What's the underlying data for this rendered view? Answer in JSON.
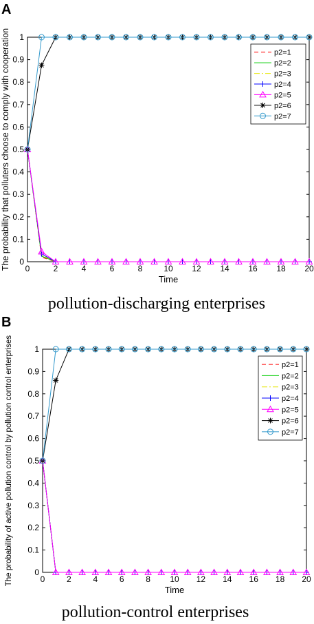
{
  "panels": [
    {
      "panel_label": "A",
      "caption": "pollution-discharging enterprises"
    },
    {
      "panel_label": "B",
      "caption": "pollution-control enterprises"
    }
  ],
  "chart_data": [
    {
      "type": "line",
      "xlabel": "Time",
      "ylabel": "The probability that polluters choose to comply with cooperation",
      "xlim": [
        0,
        20
      ],
      "ylim": [
        0,
        1
      ],
      "xticks": [
        0,
        2,
        4,
        6,
        8,
        10,
        12,
        14,
        16,
        18,
        20
      ],
      "yticks": [
        0,
        0.1,
        0.2,
        0.3,
        0.4,
        0.5,
        0.6,
        0.7,
        0.8,
        0.9,
        1
      ],
      "legend_position": "top-right",
      "x": [
        0,
        1,
        2,
        3,
        4,
        5,
        6,
        7,
        8,
        9,
        10,
        11,
        12,
        13,
        14,
        15,
        16,
        17,
        18,
        19,
        20
      ],
      "series": [
        {
          "name": "p2=1",
          "color": "#ff0000",
          "dash": "dashed",
          "marker": "none",
          "values": [
            0.5,
            0.02,
            0.0,
            0,
            0,
            0,
            0,
            0,
            0,
            0,
            0,
            0,
            0,
            0,
            0,
            0,
            0,
            0,
            0,
            0,
            0
          ]
        },
        {
          "name": "p2=2",
          "color": "#00cc00",
          "dash": "solid",
          "marker": "none",
          "values": [
            0.5,
            0.025,
            0.0,
            0,
            0,
            0,
            0,
            0,
            0,
            0,
            0,
            0,
            0,
            0,
            0,
            0,
            0,
            0,
            0,
            0,
            0
          ]
        },
        {
          "name": "p2=3",
          "color": "#e6e600",
          "dash": "dashdot",
          "marker": "none",
          "values": [
            0.5,
            0.03,
            0.0,
            0,
            0,
            0,
            0,
            0,
            0,
            0,
            0,
            0,
            0,
            0,
            0,
            0,
            0,
            0,
            0,
            0,
            0
          ]
        },
        {
          "name": "p2=4",
          "color": "#0000ff",
          "dash": "solid",
          "marker": "plus",
          "values": [
            0.5,
            0.035,
            0.0,
            0,
            0,
            0,
            0,
            0,
            0,
            0,
            0,
            0,
            0,
            0,
            0,
            0,
            0,
            0,
            0,
            0,
            0
          ]
        },
        {
          "name": "p2=5",
          "color": "#ff00ff",
          "dash": "solid",
          "marker": "triangle",
          "values": [
            0.5,
            0.045,
            0.0,
            0,
            0,
            0,
            0,
            0,
            0,
            0,
            0,
            0,
            0,
            0,
            0,
            0,
            0,
            0,
            0,
            0,
            0
          ]
        },
        {
          "name": "p2=6",
          "color": "#000000",
          "dash": "solid",
          "marker": "star",
          "values": [
            0.5,
            0.875,
            1.0,
            1,
            1,
            1,
            1,
            1,
            1,
            1,
            1,
            1,
            1,
            1,
            1,
            1,
            1,
            1,
            1,
            1,
            1
          ]
        },
        {
          "name": "p2=7",
          "color": "#3399cc",
          "dash": "solid",
          "marker": "circle",
          "values": [
            0.5,
            1.0,
            1.0,
            1,
            1,
            1,
            1,
            1,
            1,
            1,
            1,
            1,
            1,
            1,
            1,
            1,
            1,
            1,
            1,
            1,
            1
          ]
        }
      ]
    },
    {
      "type": "line",
      "xlabel": "Time",
      "ylabel": "The probability of active pollution control by pollution control enterprises",
      "xlim": [
        0,
        20
      ],
      "ylim": [
        0,
        1
      ],
      "xticks": [
        0,
        2,
        4,
        6,
        8,
        10,
        12,
        14,
        16,
        18,
        20
      ],
      "yticks": [
        0,
        0.1,
        0.2,
        0.3,
        0.4,
        0.5,
        0.6,
        0.7,
        0.8,
        0.9,
        1
      ],
      "legend_position": "top-right",
      "x": [
        0,
        1,
        2,
        3,
        4,
        5,
        6,
        7,
        8,
        9,
        10,
        11,
        12,
        13,
        14,
        15,
        16,
        17,
        18,
        19,
        20
      ],
      "series": [
        {
          "name": "p2=1",
          "color": "#ff0000",
          "dash": "dashed",
          "marker": "none",
          "values": [
            0.5,
            0.0,
            0.0,
            0,
            0,
            0,
            0,
            0,
            0,
            0,
            0,
            0,
            0,
            0,
            0,
            0,
            0,
            0,
            0,
            0,
            0
          ]
        },
        {
          "name": "p2=2",
          "color": "#00cc00",
          "dash": "solid",
          "marker": "none",
          "values": [
            0.5,
            0.0,
            0.0,
            0,
            0,
            0,
            0,
            0,
            0,
            0,
            0,
            0,
            0,
            0,
            0,
            0,
            0,
            0,
            0,
            0,
            0
          ]
        },
        {
          "name": "p2=3",
          "color": "#e6e600",
          "dash": "dashdot",
          "marker": "none",
          "values": [
            0.5,
            0.0,
            0.0,
            0,
            0,
            0,
            0,
            0,
            0,
            0,
            0,
            0,
            0,
            0,
            0,
            0,
            0,
            0,
            0,
            0,
            0
          ]
        },
        {
          "name": "p2=4",
          "color": "#0000ff",
          "dash": "solid",
          "marker": "plus",
          "values": [
            0.5,
            0.0,
            0.0,
            0,
            0,
            0,
            0,
            0,
            0,
            0,
            0,
            0,
            0,
            0,
            0,
            0,
            0,
            0,
            0,
            0,
            0
          ]
        },
        {
          "name": "p2=5",
          "color": "#ff00ff",
          "dash": "solid",
          "marker": "triangle",
          "values": [
            0.5,
            0.0,
            0.0,
            0,
            0,
            0,
            0,
            0,
            0,
            0,
            0,
            0,
            0,
            0,
            0,
            0,
            0,
            0,
            0,
            0,
            0
          ]
        },
        {
          "name": "p2=6",
          "color": "#000000",
          "dash": "solid",
          "marker": "star",
          "values": [
            0.5,
            0.86,
            1.0,
            1,
            1,
            1,
            1,
            1,
            1,
            1,
            1,
            1,
            1,
            1,
            1,
            1,
            1,
            1,
            1,
            1,
            1
          ]
        },
        {
          "name": "p2=7",
          "color": "#3399cc",
          "dash": "solid",
          "marker": "circle",
          "values": [
            0.5,
            1.0,
            1.0,
            1,
            1,
            1,
            1,
            1,
            1,
            1,
            1,
            1,
            1,
            1,
            1,
            1,
            1,
            1,
            1,
            1,
            1
          ]
        }
      ]
    }
  ]
}
